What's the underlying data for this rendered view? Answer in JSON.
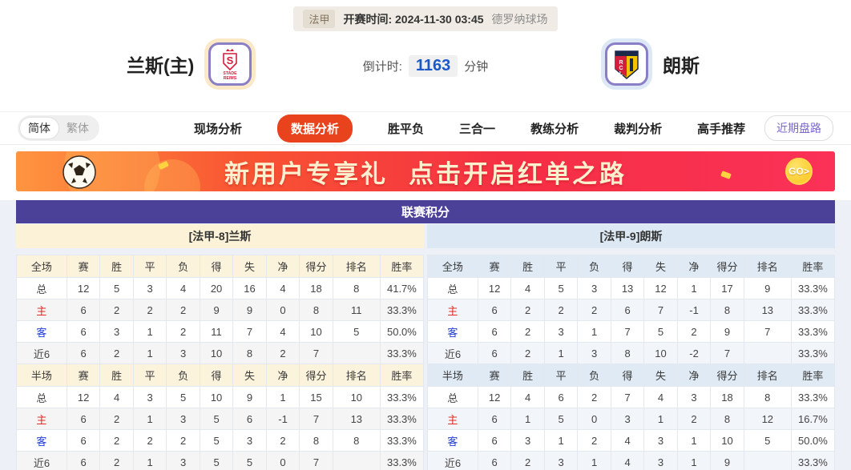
{
  "meta_bar": {
    "league": "法甲",
    "kickoff": "开赛时间: 2024-11-30 03:45",
    "venue": "德罗纳球场"
  },
  "teams": {
    "home": {
      "name": "兰斯(主)",
      "logo_line1": "STADE",
      "logo_line2": "REIMS"
    },
    "away": {
      "name": "朗斯",
      "logo_letters": "RCL"
    },
    "countdown": {
      "label": "倒计时:",
      "value": "1163",
      "unit": "分钟"
    }
  },
  "nav": {
    "lang": {
      "simplified": "简体",
      "traditional": "繁体"
    },
    "tabs": [
      {
        "label": "现场分析",
        "active": false
      },
      {
        "label": "数据分析",
        "active": true
      },
      {
        "label": "胜平负",
        "active": false
      },
      {
        "label": "三合一",
        "active": false
      },
      {
        "label": "教练分析",
        "active": false
      },
      {
        "label": "裁判分析",
        "active": false
      },
      {
        "label": "高手推荐",
        "active": false
      }
    ],
    "recent_button": "近期盘路"
  },
  "banner": {
    "headline_left": "新用户专享礼",
    "headline_right": "点击开启红单之路",
    "go_label": "GO>"
  },
  "league_table": {
    "title": "联赛积分",
    "columns_full": [
      "全场",
      "赛",
      "胜",
      "平",
      "负",
      "得",
      "失",
      "净",
      "得分",
      "排名",
      "胜率"
    ],
    "columns_half": [
      "半场",
      "赛",
      "胜",
      "平",
      "负",
      "得",
      "失",
      "净",
      "得分",
      "排名",
      "胜率"
    ],
    "home": {
      "header": "[法甲-8]兰斯",
      "full_rows": [
        {
          "label": "总",
          "type": "total",
          "values": [
            "12",
            "5",
            "3",
            "4",
            "20",
            "16",
            "4",
            "18",
            "8"
          ],
          "rate": "41.7%"
        },
        {
          "label": "主",
          "type": "home",
          "values": [
            "6",
            "2",
            "2",
            "2",
            "9",
            "9",
            "0",
            "8",
            "11"
          ],
          "rate": "33.3%"
        },
        {
          "label": "客",
          "type": "away",
          "values": [
            "6",
            "3",
            "1",
            "2",
            "11",
            "7",
            "4",
            "10",
            "5"
          ],
          "rate": "50.0%"
        },
        {
          "label": "近6",
          "type": "recent",
          "values": [
            "6",
            "2",
            "1",
            "3",
            "10",
            "8",
            "2",
            "7",
            ""
          ],
          "rate": "33.3%"
        }
      ],
      "half_rows": [
        {
          "label": "总",
          "type": "total",
          "values": [
            "12",
            "4",
            "3",
            "5",
            "10",
            "9",
            "1",
            "15",
            "10"
          ],
          "rate": "33.3%"
        },
        {
          "label": "主",
          "type": "home",
          "values": [
            "6",
            "2",
            "1",
            "3",
            "5",
            "6",
            "-1",
            "7",
            "13"
          ],
          "rate": "33.3%"
        },
        {
          "label": "客",
          "type": "away",
          "values": [
            "6",
            "2",
            "2",
            "2",
            "5",
            "3",
            "2",
            "8",
            "8"
          ],
          "rate": "33.3%"
        },
        {
          "label": "近6",
          "type": "recent",
          "values": [
            "6",
            "2",
            "1",
            "3",
            "5",
            "5",
            "0",
            "7",
            ""
          ],
          "rate": "33.3%"
        }
      ]
    },
    "away": {
      "header": "[法甲-9]朗斯",
      "full_rows": [
        {
          "label": "总",
          "type": "total",
          "values": [
            "12",
            "4",
            "5",
            "3",
            "13",
            "12",
            "1",
            "17",
            "9"
          ],
          "rate": "33.3%"
        },
        {
          "label": "主",
          "type": "home",
          "values": [
            "6",
            "2",
            "2",
            "2",
            "6",
            "7",
            "-1",
            "8",
            "13"
          ],
          "rate": "33.3%"
        },
        {
          "label": "客",
          "type": "away",
          "values": [
            "6",
            "2",
            "3",
            "1",
            "7",
            "5",
            "2",
            "9",
            "7"
          ],
          "rate": "33.3%"
        },
        {
          "label": "近6",
          "type": "recent",
          "values": [
            "6",
            "2",
            "1",
            "3",
            "8",
            "10",
            "-2",
            "7",
            ""
          ],
          "rate": "33.3%"
        }
      ],
      "half_rows": [
        {
          "label": "总",
          "type": "total",
          "values": [
            "12",
            "4",
            "6",
            "2",
            "7",
            "4",
            "3",
            "18",
            "8"
          ],
          "rate": "33.3%"
        },
        {
          "label": "主",
          "type": "home",
          "values": [
            "6",
            "1",
            "5",
            "0",
            "3",
            "1",
            "2",
            "8",
            "12"
          ],
          "rate": "16.7%"
        },
        {
          "label": "客",
          "type": "away",
          "values": [
            "6",
            "3",
            "1",
            "2",
            "4",
            "3",
            "1",
            "10",
            "5"
          ],
          "rate": "50.0%"
        },
        {
          "label": "近6",
          "type": "recent",
          "values": [
            "6",
            "2",
            "3",
            "1",
            "4",
            "3",
            "1",
            "9",
            ""
          ],
          "rate": "33.3%"
        }
      ]
    }
  },
  "colors": {
    "accent_red": "#e8431d",
    "table_header_purple": "#4c4199",
    "home_panel_cream": "#fcf2d8",
    "away_panel_blue": "#dce8f3",
    "home_row_label_red": "#e02a22",
    "away_row_label_blue": "#1f3dd6",
    "countdown_blue": "#1b57c8"
  }
}
